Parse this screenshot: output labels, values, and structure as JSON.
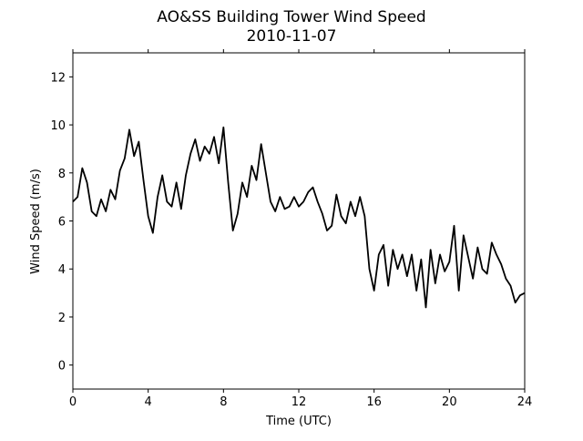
{
  "chart_data": {
    "type": "line",
    "title": "AO&SS Building Tower Wind Speed",
    "subtitle": "2010-11-07",
    "x_label": "Time (UTC)",
    "y_label": "Wind Speed (m/s)",
    "x": [
      0,
      0.25,
      0.5,
      0.75,
      1,
      1.25,
      1.5,
      1.75,
      2,
      2.25,
      2.5,
      2.75,
      3,
      3.25,
      3.5,
      3.75,
      4,
      4.25,
      4.5,
      4.75,
      5,
      5.25,
      5.5,
      5.75,
      6,
      6.25,
      6.5,
      6.75,
      7,
      7.25,
      7.5,
      7.75,
      8,
      8.25,
      8.5,
      8.75,
      9,
      9.25,
      9.5,
      9.75,
      10,
      10.25,
      10.5,
      10.75,
      11,
      11.25,
      11.5,
      11.75,
      12,
      12.25,
      12.5,
      12.75,
      13,
      13.25,
      13.5,
      13.75,
      14,
      14.25,
      14.5,
      14.75,
      15,
      15.25,
      15.5,
      15.75,
      16,
      16.25,
      16.5,
      16.75,
      17,
      17.25,
      17.5,
      17.75,
      18,
      18.25,
      18.5,
      18.75,
      19,
      19.25,
      19.5,
      19.75,
      20,
      20.25,
      20.5,
      20.75,
      21,
      21.25,
      21.5,
      21.75,
      22,
      22.25,
      22.5,
      22.75,
      23,
      23.25,
      23.5,
      23.75,
      24
    ],
    "series": [
      {
        "color": "#000000",
        "values": [
          6.8,
          7.0,
          8.2,
          7.6,
          6.4,
          6.2,
          6.9,
          6.4,
          7.3,
          6.9,
          8.1,
          8.6,
          9.8,
          8.7,
          9.3,
          7.7,
          6.2,
          5.5,
          7.0,
          7.9,
          6.8,
          6.6,
          7.6,
          6.5,
          7.9,
          8.8,
          9.4,
          8.5,
          9.1,
          8.8,
          9.5,
          8.4,
          9.9,
          7.6,
          5.6,
          6.3,
          7.6,
          7.0,
          8.3,
          7.7,
          9.2,
          8.0,
          6.8,
          6.4,
          7.0,
          6.5,
          6.6,
          7.0,
          6.6,
          6.8,
          7.2,
          7.4,
          6.8,
          6.3,
          5.6,
          5.8,
          7.1,
          6.2,
          5.9,
          6.8,
          6.2,
          7.0,
          6.2,
          4.0,
          3.1,
          4.6,
          5.0,
          3.3,
          4.8,
          4.0,
          4.6,
          3.7,
          4.6,
          3.1,
          4.4,
          2.4,
          4.8,
          3.4,
          4.6,
          3.9,
          4.3,
          5.8,
          3.1,
          5.4,
          4.5,
          3.6,
          4.9,
          4.0,
          3.8,
          5.1,
          4.6,
          4.2,
          3.6,
          3.3,
          2.6,
          2.9,
          3.0
        ]
      }
    ],
    "xlim": [
      0,
      24
    ],
    "xticks": [
      0,
      4,
      8,
      12,
      16,
      20,
      24
    ],
    "ylim": [
      -1,
      13
    ],
    "yticks": [
      0,
      2,
      4,
      6,
      8,
      10,
      12
    ]
  }
}
